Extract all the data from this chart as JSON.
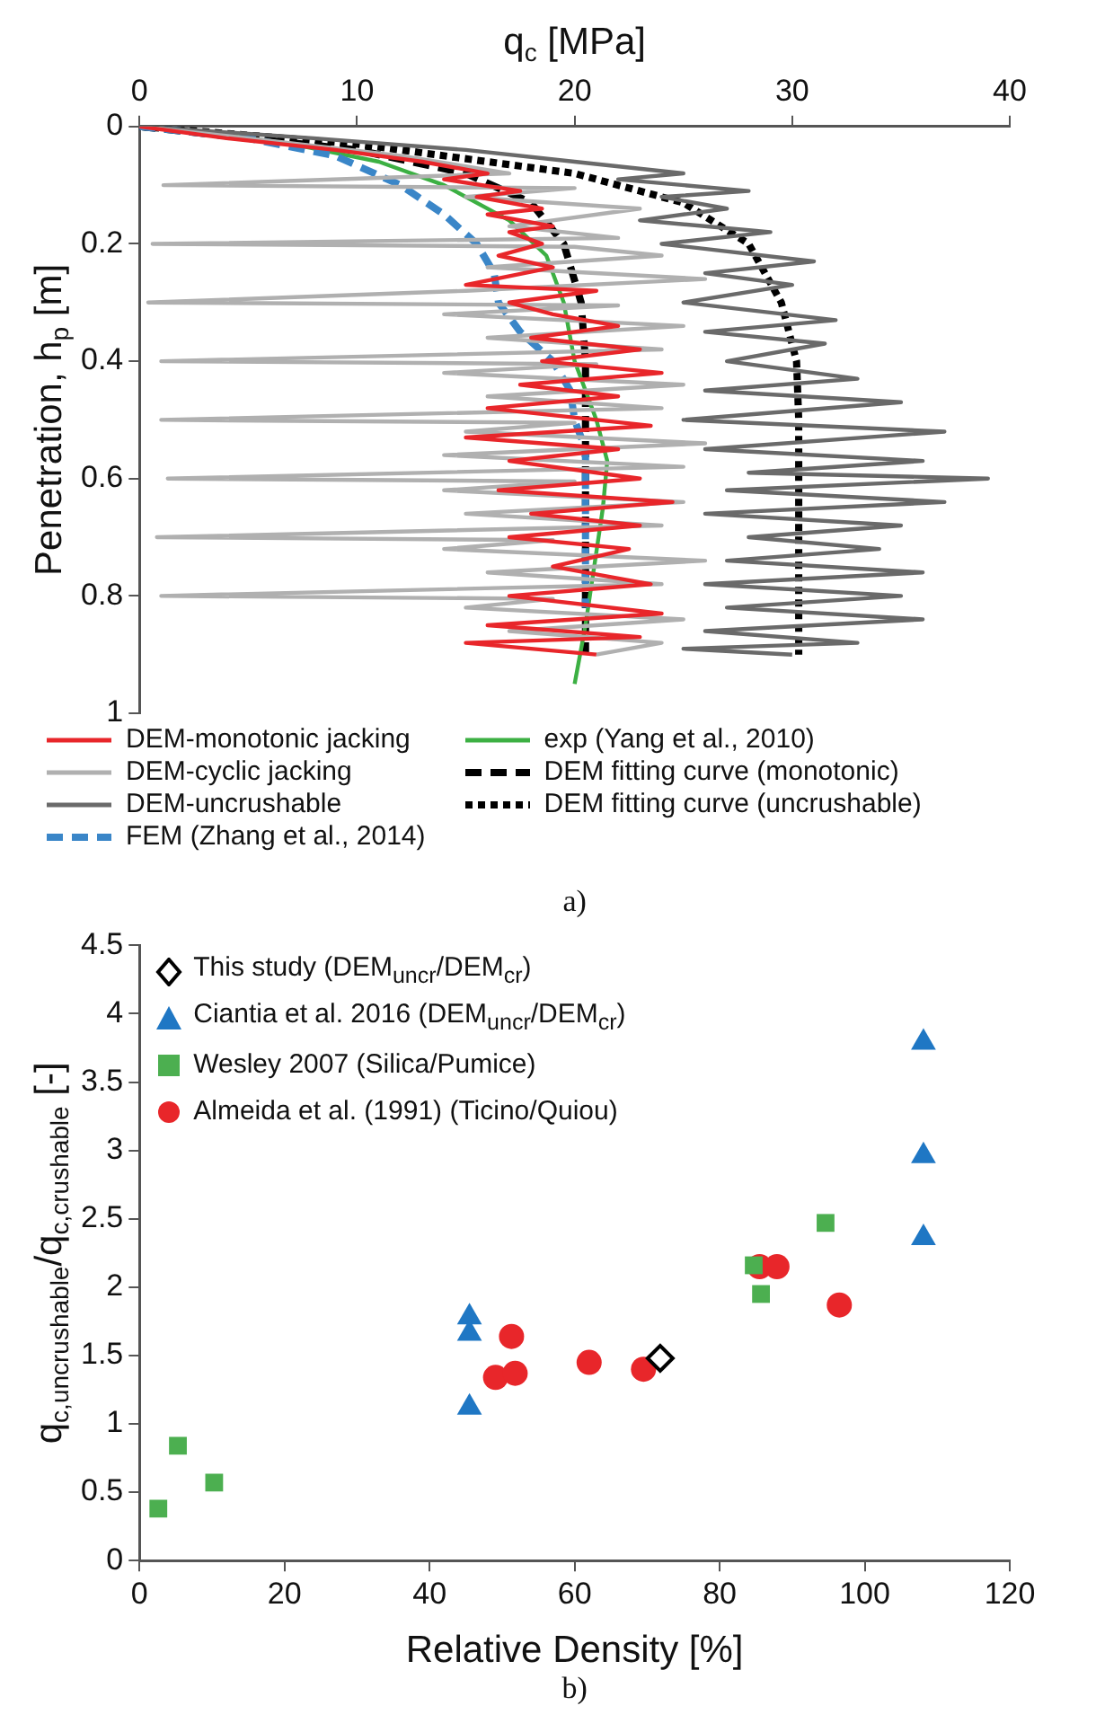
{
  "chart_data": [
    {
      "type": "line",
      "xlabel": "q$_{c}$ [MPa]",
      "ylabel": "Penetration, h$_{p}$ [m]",
      "xlim": [
        0,
        40
      ],
      "xticks": [
        0,
        10,
        20,
        30,
        40
      ],
      "ylim": [
        1,
        0
      ],
      "yticks": [
        0,
        0.2,
        0.4,
        0.6,
        0.8,
        1
      ],
      "grid": false,
      "legend": "bottom",
      "marker": "none",
      "annotations": [
        "a)"
      ],
      "series": [
        {
          "name": "DEM-monotonic jacking",
          "color": "#e8262a",
          "line_style": "solid",
          "x": [
            0,
            4,
            9,
            13,
            16,
            14,
            17.5,
            15.5,
            18.5,
            16,
            19,
            17,
            18.5,
            16.5,
            19,
            15,
            21,
            17,
            19,
            22,
            18,
            23,
            18.5,
            24,
            17.5,
            22,
            16,
            23.5,
            15,
            22,
            17,
            23,
            16.5,
            24.5,
            18,
            23,
            17,
            22.5,
            19,
            23.5,
            17,
            24,
            16,
            23,
            15,
            21
          ],
          "values": [
            0,
            0.02,
            0.04,
            0.06,
            0.08,
            0.09,
            0.11,
            0.12,
            0.14,
            0.15,
            0.17,
            0.18,
            0.2,
            0.22,
            0.24,
            0.27,
            0.28,
            0.3,
            0.32,
            0.34,
            0.36,
            0.38,
            0.4,
            0.42,
            0.44,
            0.46,
            0.48,
            0.51,
            0.53,
            0.55,
            0.57,
            0.6,
            0.62,
            0.64,
            0.66,
            0.68,
            0.7,
            0.72,
            0.75,
            0.78,
            0.8,
            0.83,
            0.85,
            0.87,
            0.88,
            0.9
          ]
        },
        {
          "name": "DEM-cyclic jacking",
          "color": "#b0b0b0",
          "line_style": "solid",
          "x": [
            0,
            5,
            12,
            17,
            1.1,
            20,
            15,
            23,
            17,
            22,
            0.6,
            20,
            24,
            16,
            26,
            15,
            0.4,
            22,
            14,
            25,
            16,
            24,
            1,
            21,
            14,
            25,
            16,
            24,
            1,
            20,
            15,
            26,
            14,
            25,
            1.3,
            20,
            14,
            25,
            15,
            24,
            0.8,
            19,
            14,
            26,
            16,
            24,
            1,
            19,
            15,
            25,
            17,
            24,
            21
          ],
          "values": [
            0,
            0.02,
            0.05,
            0.08,
            0.1,
            0.105,
            0.12,
            0.14,
            0.17,
            0.19,
            0.2,
            0.205,
            0.22,
            0.24,
            0.26,
            0.28,
            0.3,
            0.305,
            0.32,
            0.34,
            0.36,
            0.38,
            0.4,
            0.405,
            0.42,
            0.44,
            0.46,
            0.48,
            0.5,
            0.505,
            0.52,
            0.54,
            0.56,
            0.58,
            0.6,
            0.605,
            0.62,
            0.64,
            0.66,
            0.68,
            0.7,
            0.705,
            0.72,
            0.74,
            0.76,
            0.78,
            0.8,
            0.805,
            0.82,
            0.84,
            0.86,
            0.88,
            0.9
          ]
        },
        {
          "name": "DEM-uncrushable",
          "color": "#6a6a6a",
          "line_style": "solid",
          "x": [
            0,
            8,
            15,
            20,
            25,
            22,
            28,
            24,
            27,
            23,
            29,
            24,
            31,
            26,
            30,
            25,
            32,
            26,
            31.5,
            27,
            33,
            26,
            35,
            25,
            37,
            26,
            36,
            28,
            39,
            27,
            37,
            26,
            35,
            28,
            34,
            27,
            36,
            26,
            35,
            27,
            36,
            26,
            33,
            25,
            30
          ],
          "values": [
            0,
            0.02,
            0.04,
            0.06,
            0.08,
            0.09,
            0.11,
            0.12,
            0.14,
            0.16,
            0.18,
            0.2,
            0.23,
            0.25,
            0.27,
            0.3,
            0.33,
            0.35,
            0.37,
            0.4,
            0.43,
            0.45,
            0.47,
            0.5,
            0.52,
            0.55,
            0.57,
            0.59,
            0.6,
            0.62,
            0.64,
            0.66,
            0.68,
            0.7,
            0.72,
            0.74,
            0.76,
            0.78,
            0.8,
            0.82,
            0.84,
            0.86,
            0.88,
            0.89,
            0.9
          ]
        },
        {
          "name": "FEM (Zhang et al., 2014)",
          "color": "#3a86c8",
          "line_style": "dashed",
          "x": [
            0,
            5,
            9,
            12,
            14,
            15.5,
            16.3,
            16.5,
            17.5,
            19,
            19.8,
            20,
            20.5,
            20.5,
            20.5
          ],
          "values": [
            0,
            0.02,
            0.05,
            0.1,
            0.15,
            0.2,
            0.25,
            0.3,
            0.35,
            0.4,
            0.45,
            0.5,
            0.55,
            0.6,
            0.82
          ]
        },
        {
          "name": "exp (Yang et al., 2010)",
          "color": "#3cb043",
          "line_style": "solid",
          "x": [
            0,
            3,
            7,
            11,
            14,
            17,
            18.7,
            19.5,
            20,
            21,
            21.5,
            21.3,
            20.9,
            20.5,
            20
          ],
          "values": [
            0,
            0.01,
            0.03,
            0.06,
            0.1,
            0.16,
            0.22,
            0.3,
            0.4,
            0.5,
            0.57,
            0.65,
            0.75,
            0.85,
            0.95
          ]
        },
        {
          "name": "DEM fitting curve (monotonic)",
          "color": "#000000",
          "line_style": "dashed",
          "x": [
            0,
            5,
            10,
            15,
            18,
            19.5,
            20.3,
            20.5,
            20.5
          ],
          "values": [
            0,
            0.02,
            0.04,
            0.08,
            0.13,
            0.2,
            0.3,
            0.4,
            0.9
          ]
        },
        {
          "name": "DEM fitting curve (uncrushable)",
          "color": "#000000",
          "line_style": "dotted",
          "x": [
            0,
            10,
            20,
            25,
            28,
            29.5,
            30.2,
            30.3,
            30.3
          ],
          "values": [
            0,
            0.03,
            0.08,
            0.13,
            0.2,
            0.3,
            0.4,
            0.5,
            0.9
          ]
        }
      ]
    },
    {
      "type": "scatter",
      "xlabel": "Relative Density [%]",
      "ylabel": "q$_{c,uncrushable}$/q$_{c,crushable}$ [-]",
      "xlim": [
        0,
        120
      ],
      "xticks": [
        0,
        20,
        40,
        60,
        80,
        100,
        120
      ],
      "ylim": [
        0,
        4.5
      ],
      "yticks": [
        0,
        0.5,
        1,
        1.5,
        2,
        2.5,
        3,
        3.5,
        4,
        4.5
      ],
      "grid": false,
      "legend": "top left",
      "annotations": [
        "b)"
      ],
      "series": [
        {
          "name": "This study (DEM$_{uncr}$/DEM$_{cr}$)",
          "color": "#000000",
          "marker": "diamond",
          "x": [
            71.8
          ],
          "values": [
            1.48
          ]
        },
        {
          "name": "Ciantia et al. 2016 (DEM$_{uncr}$/DEM$_{cr}$)",
          "color": "#1f77c4",
          "marker": "triangle",
          "x": [
            108.1,
            108.1,
            108.1,
            45.5,
            45.5,
            45.5
          ],
          "values": [
            3.79,
            2.96,
            2.36,
            1.78,
            1.66,
            1.12
          ]
        },
        {
          "name": "Wesley 2007 (Silica/Pumice)",
          "color": "#4caf50",
          "marker": "square",
          "x": [
            2.6,
            5.3,
            10.3,
            84.7,
            85.7,
            94.6
          ],
          "values": [
            0.38,
            0.84,
            0.57,
            2.16,
            1.95,
            2.47
          ]
        },
        {
          "name": "Almeida et al. (1991) (Ticino/Quiou)",
          "color": "#e8262a",
          "marker": "circle",
          "x": [
            51.3,
            49.1,
            51.8,
            62,
            69.5,
            85.5,
            87.9,
            96.5
          ],
          "values": [
            1.64,
            1.34,
            1.37,
            1.45,
            1.4,
            2.15,
            2.15,
            1.87
          ]
        }
      ]
    }
  ]
}
